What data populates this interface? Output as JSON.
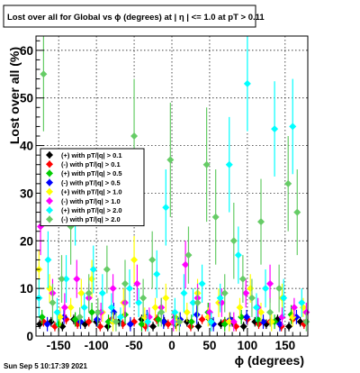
{
  "chart_data": {
    "type": "scatter",
    "title": "Lost over all for Global vs ϕ (degrees) at |  η | <= 1.0 at pT > 0.11",
    "xlabel": "ϕ (degrees)",
    "ylabel": "Lost over all (%)",
    "xlim": [
      -180,
      180
    ],
    "ylim": [
      0,
      63
    ],
    "x_ticks": [
      -150,
      -100,
      -50,
      0,
      50,
      100,
      150
    ],
    "y_ticks": [
      0,
      10,
      20,
      30,
      40,
      50,
      60
    ],
    "grid": true,
    "legend_position": "left-middle",
    "timestamp": "Sun Sep  5 10:17:39 2021",
    "series": [
      {
        "name": "(+) with pT/|q| > 0.1",
        "color": "#000000",
        "x": [
          -175,
          -160,
          -145,
          -130,
          -115,
          -100,
          -85,
          -70,
          -55,
          -40,
          -25,
          -10,
          5,
          20,
          35,
          50,
          65,
          80,
          95,
          110,
          125,
          140,
          155,
          170
        ],
        "y": [
          2.5,
          3.0,
          2.0,
          3.5,
          2.5,
          3.0,
          2.0,
          3.0,
          2.5,
          3.5,
          2.0,
          3.0,
          2.5,
          3.0,
          2.0,
          3.5,
          2.5,
          3.0,
          2.0,
          3.0,
          2.5,
          3.5,
          2.0,
          3.0
        ],
        "err": [
          1,
          1,
          1,
          1,
          1,
          1,
          1,
          1,
          1,
          1,
          1,
          1,
          1,
          1,
          1,
          1,
          1,
          1,
          1,
          1,
          1,
          1,
          1,
          1
        ]
      },
      {
        "name": "(-) with pT/|q| > 0.1",
        "color": "#ff0000",
        "x": [
          -170,
          -155,
          -140,
          -125,
          -110,
          -95,
          -80,
          -65,
          -50,
          -35,
          -20,
          -5,
          10,
          25,
          40,
          55,
          70,
          85,
          100,
          115,
          130,
          145,
          160,
          175
        ],
        "y": [
          3.0,
          2.0,
          3.5,
          2.5,
          3.0,
          2.0,
          3.5,
          2.5,
          3.0,
          2.0,
          3.5,
          2.5,
          3.0,
          2.0,
          3.5,
          2.5,
          3.0,
          2.0,
          3.5,
          2.5,
          3.0,
          2.0,
          3.5,
          2.5
        ],
        "err": [
          1,
          1,
          1,
          1,
          1,
          1,
          1,
          1,
          1,
          1,
          1,
          1,
          1,
          1,
          1,
          1,
          1,
          1,
          1,
          1,
          1,
          1,
          1,
          1
        ]
      },
      {
        "name": "(+) with pT/|q| > 0.5",
        "color": "#00cc00",
        "x": [
          -172,
          -150,
          -128,
          -106,
          -84,
          -62,
          -40,
          -18,
          4,
          26,
          48,
          70,
          92,
          114,
          136,
          158
        ],
        "y": [
          4.0,
          2.5,
          3.5,
          5.0,
          3.0,
          4.5,
          2.5,
          3.5,
          4.0,
          3.0,
          5.0,
          2.5,
          4.0,
          3.5,
          3.0,
          4.5
        ],
        "err": [
          1.5,
          1.5,
          1.5,
          2,
          1.5,
          2,
          1.5,
          1.5,
          1.5,
          1.5,
          2,
          1.5,
          1.5,
          1.5,
          1.5,
          2
        ]
      },
      {
        "name": "(-) with pT/|q| > 0.5",
        "color": "#0000ff",
        "x": [
          -165,
          -143,
          -121,
          -99,
          -77,
          -55,
          -33,
          -11,
          11,
          33,
          55,
          77,
          99,
          121,
          143,
          165
        ],
        "y": [
          2.5,
          4.0,
          3.0,
          3.5,
          5.0,
          2.5,
          4.0,
          3.0,
          3.5,
          4.5,
          2.5,
          3.5,
          4.0,
          3.0,
          2.5,
          4.0
        ],
        "err": [
          1.5,
          1.5,
          1.5,
          1.5,
          2,
          1.5,
          1.5,
          1.5,
          1.5,
          2,
          1.5,
          1.5,
          1.5,
          1.5,
          1.5,
          1.5
        ]
      },
      {
        "name": "(+) with pT/|q| > 1.0",
        "color": "#ffff00",
        "x": [
          -176,
          -162,
          -148,
          -134,
          -120,
          -106,
          -92,
          -78,
          -64,
          -50,
          -36,
          -22,
          -8,
          6,
          20,
          34,
          48,
          62,
          76,
          90,
          104,
          118,
          132,
          146,
          160,
          174
        ],
        "y": [
          14,
          10,
          4,
          6,
          9,
          12,
          5,
          3,
          7,
          16,
          4,
          6,
          8,
          3,
          5,
          9,
          4,
          7,
          3,
          6,
          10,
          5,
          3,
          8,
          4,
          6
        ],
        "err": [
          4,
          3,
          2,
          2,
          3,
          4,
          2,
          2,
          3,
          5,
          2,
          2,
          3,
          2,
          2,
          3,
          2,
          3,
          2,
          2,
          3,
          2,
          2,
          3,
          2,
          2
        ]
      },
      {
        "name": "(-) with pT/|q| > 1.0",
        "color": "#ff00ff",
        "x": [
          -174,
          -158,
          -142,
          -126,
          -110,
          -94,
          -78,
          -62,
          -46,
          -30,
          -14,
          2,
          18,
          34,
          50,
          66,
          82,
          98,
          114,
          130,
          146,
          162,
          178
        ],
        "y": [
          23,
          9,
          6,
          12,
          8,
          5,
          10,
          7,
          11,
          4,
          6,
          3,
          15,
          8,
          5,
          7,
          3,
          9,
          6,
          11,
          4,
          6,
          5
        ],
        "err": [
          6,
          3,
          3,
          4,
          3,
          2,
          3,
          3,
          4,
          2,
          2,
          2,
          5,
          3,
          2,
          3,
          2,
          3,
          2,
          4,
          2,
          2,
          2
        ]
      },
      {
        "name": "(+) with pT/|q| > 2.0",
        "color": "#00ffff",
        "x": [
          -176,
          -164,
          -152,
          -140,
          -128,
          -116,
          -104,
          -92,
          -80,
          -68,
          -56,
          -44,
          -32,
          -20,
          -8,
          4,
          16,
          28,
          40,
          52,
          64,
          76,
          88,
          100,
          112,
          124,
          136,
          148,
          160,
          172
        ],
        "y": [
          8,
          16,
          5,
          12,
          27,
          6,
          14,
          9,
          6,
          4,
          10,
          7,
          3,
          13,
          27,
          5,
          9,
          7,
          11,
          3,
          8,
          36,
          17,
          53,
          6,
          10,
          43.5,
          8,
          44,
          7
        ],
        "err": [
          4,
          6,
          3,
          5,
          8,
          3,
          5,
          4,
          3,
          2,
          4,
          3,
          2,
          5,
          8,
          3,
          4,
          3,
          4,
          2,
          3,
          10,
          6,
          10,
          3,
          4,
          10,
          4,
          10,
          3
        ]
      },
      {
        "name": "(-) with pT/|q| > 2.0",
        "color": "#66cc66",
        "x": [
          -170,
          -158,
          -146,
          -134,
          -122,
          -110,
          -98,
          -86,
          -74,
          -62,
          -50,
          -38,
          -26,
          -14,
          -2,
          10,
          22,
          34,
          46,
          58,
          70,
          82,
          94,
          106,
          118,
          130,
          142,
          154,
          166,
          178
        ],
        "y": [
          55,
          7,
          12,
          23,
          4,
          9,
          5,
          14,
          3,
          11,
          42,
          8,
          16,
          5,
          37,
          3,
          17,
          7,
          36,
          25,
          9,
          20,
          12,
          8,
          24,
          5,
          10,
          32,
          26,
          3
        ],
        "err": [
          12,
          4,
          5,
          8,
          2,
          4,
          3,
          5,
          2,
          5,
          12,
          4,
          6,
          3,
          12,
          2,
          6,
          3,
          12,
          10,
          4,
          8,
          5,
          4,
          9,
          3,
          5,
          10,
          9,
          2
        ]
      }
    ]
  }
}
